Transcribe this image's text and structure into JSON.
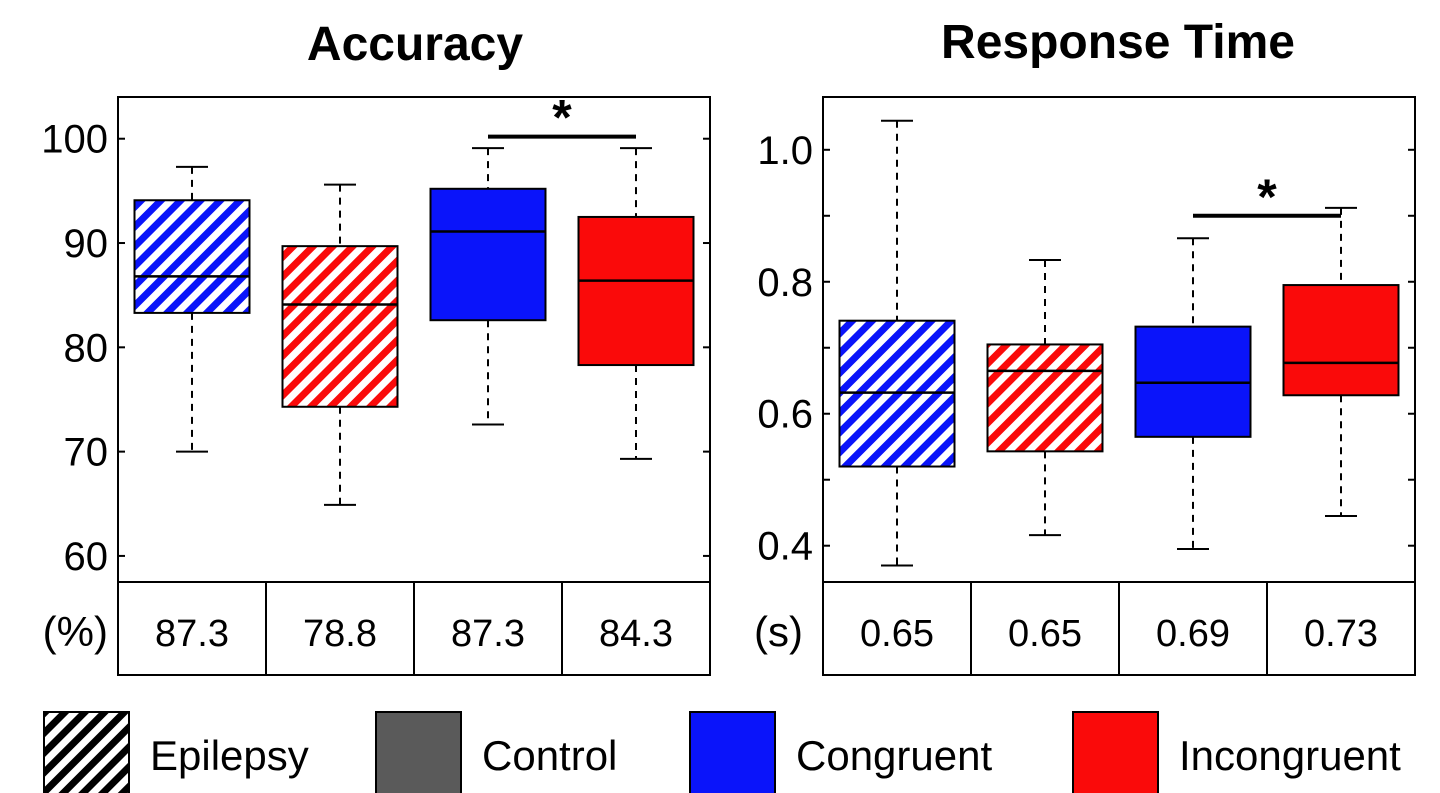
{
  "colors": {
    "congruent": "#0a14fa",
    "incongruent": "#fa0a0a",
    "control_swatch": "#5a5a5a",
    "frame": "#000000",
    "background": "#ffffff"
  },
  "chart_data": [
    {
      "type": "boxplot",
      "title": "Accuracy",
      "unit": "(%)",
      "ylim": [
        57.5,
        104
      ],
      "yticks": [
        60,
        70,
        80,
        90,
        100
      ],
      "ytick_labels": [
        "60",
        "70",
        "80",
        "90",
        "100"
      ],
      "significance": {
        "from": 2,
        "to": 3,
        "y": 100.2,
        "label": "*"
      },
      "boxes": [
        {
          "group": "Epilepsy",
          "condition": "Congruent",
          "hatched": true,
          "whisker_low": 70,
          "q1": 83.3,
          "median": 86.8,
          "q3": 94.1,
          "whisker_high": 97.3
        },
        {
          "group": "Epilepsy",
          "condition": "Incongruent",
          "hatched": true,
          "whisker_low": 64.9,
          "q1": 74.3,
          "median": 84.1,
          "q3": 89.7,
          "whisker_high": 95.6
        },
        {
          "group": "Control",
          "condition": "Congruent",
          "hatched": false,
          "whisker_low": 72.6,
          "q1": 82.6,
          "median": 91.1,
          "q3": 95.2,
          "whisker_high": 99.1
        },
        {
          "group": "Control",
          "condition": "Incongruent",
          "hatched": false,
          "whisker_low": 69.3,
          "q1": 78.3,
          "median": 86.4,
          "q3": 92.5,
          "whisker_high": 99.1
        }
      ],
      "table_values": [
        "87.3",
        "78.8",
        "87.3",
        "84.3"
      ]
    },
    {
      "type": "boxplot",
      "title": "Response Time",
      "unit": "(s)",
      "ylim": [
        0.345,
        1.08
      ],
      "yticks": [
        0.4,
        0.5,
        0.6,
        0.7,
        0.8,
        0.9,
        1.0
      ],
      "ytick_labels": [
        "0.4",
        "",
        "0.6",
        "",
        "0.8",
        "",
        "1.0"
      ],
      "significance": {
        "from": 2,
        "to": 3,
        "y": 0.9,
        "label": "*"
      },
      "boxes": [
        {
          "group": "Epilepsy",
          "condition": "Congruent",
          "hatched": true,
          "whisker_low": 0.37,
          "q1": 0.52,
          "median": 0.632,
          "q3": 0.741,
          "whisker_high": 1.044
        },
        {
          "group": "Epilepsy",
          "condition": "Incongruent",
          "hatched": true,
          "whisker_low": 0.416,
          "q1": 0.543,
          "median": 0.665,
          "q3": 0.705,
          "whisker_high": 0.833
        },
        {
          "group": "Control",
          "condition": "Congruent",
          "hatched": false,
          "whisker_low": 0.395,
          "q1": 0.565,
          "median": 0.647,
          "q3": 0.732,
          "whisker_high": 0.866
        },
        {
          "group": "Control",
          "condition": "Incongruent",
          "hatched": false,
          "whisker_low": 0.445,
          "q1": 0.628,
          "median": 0.677,
          "q3": 0.795,
          "whisker_high": 0.912
        }
      ],
      "table_values": [
        "0.65",
        "0.65",
        "0.69",
        "0.73"
      ]
    }
  ],
  "legend": [
    {
      "label": "Epilepsy",
      "swatch": "hatch"
    },
    {
      "label": "Control",
      "swatch": "control"
    },
    {
      "label": "Congruent",
      "swatch": "congruent"
    },
    {
      "label": "Incongruent",
      "swatch": "incongruent"
    }
  ]
}
